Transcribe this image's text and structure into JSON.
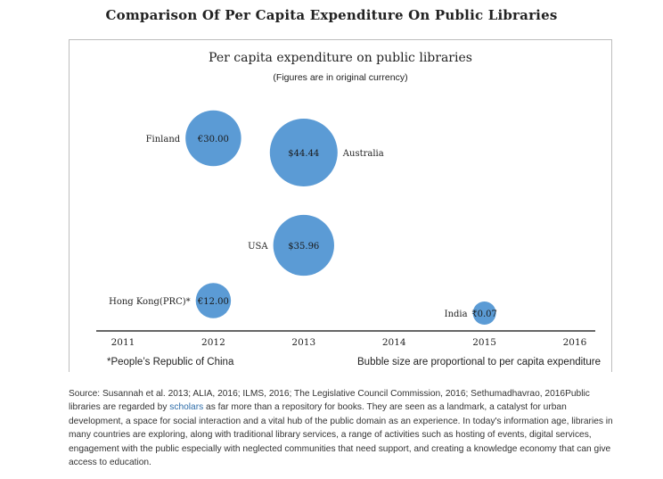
{
  "page": {
    "title": "Comparison Of Per Capita Expenditure On Public Libraries"
  },
  "chart_data": {
    "type": "bubble",
    "title": "Per capita expenditure on public libraries",
    "subtitle": "(Figures are in original currency)",
    "xlabel": "",
    "ylabel": "",
    "xlim": [
      2011,
      2016
    ],
    "x_ticks": [
      "2011",
      "2012",
      "2013",
      "2014",
      "2015",
      "2016"
    ],
    "footnote": "*People’s Republic of China",
    "size_note": "Bubble size are proportional to per capita expenditure",
    "bubble_color": "#5b9bd5",
    "points": [
      {
        "country": "Finland",
        "x": 2012,
        "value": 30.0,
        "label": "€30.00"
      },
      {
        "country": "Australia",
        "x": 2013,
        "value": 44.44,
        "label": "$44.44"
      },
      {
        "country": "USA",
        "x": 2013,
        "value": 35.96,
        "label": "$35.96"
      },
      {
        "country": "Hong Kong(PRC)*",
        "x": 2012,
        "value": 12.0,
        "label": "€12.00"
      },
      {
        "country": "India",
        "x": 2015,
        "value": 0.07,
        "label": "₹0.07"
      }
    ]
  },
  "caption": {
    "source": "Source: Susannah et al. 2013; ALIA, 2016;  ILMS, 2016; The Legislative Council Commission, 2016; Sethumadhavrao, 2016Public libraries are regarded by",
    "link": "scholars",
    "rest": "as far more than a repository for books. They are seen as a landmark, a catalyst for urban development, a space for social interaction and a vital hub of the public domain as an experience. In today's information age, libraries in many countries are exploring, along with traditional library services, a range of activities such as hosting of events, digital services, engagement with the public especially with neglected communities that need support, and creating a knowledge economy that can give access to education."
  }
}
